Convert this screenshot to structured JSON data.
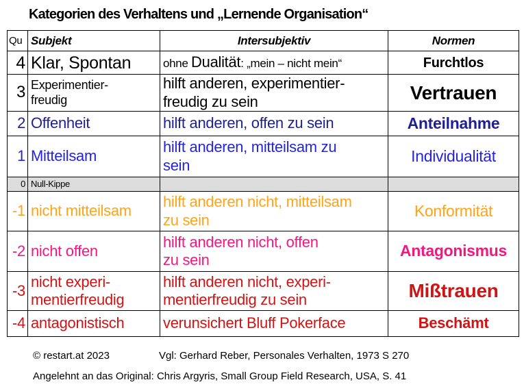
{
  "title": "Kategorien des Verhaltens und „Lernende Organisation“",
  "table": {
    "headers": {
      "qu": "Qu",
      "subjekt": "Subjekt",
      "intersubjektiv": "Intersubjektiv",
      "normen": "Normen"
    },
    "rows": [
      {
        "qu": "4",
        "subjekt": "Klar, Spontan",
        "inter": [
          {
            "text": "ohne ",
            "size": "sm"
          },
          {
            "text": "Dualität",
            "size": "lg"
          },
          {
            "text": ": „mein – nicht mein“",
            "size": "sm"
          }
        ],
        "normen": "Furchtlos",
        "color": "#000000"
      },
      {
        "qu": "3",
        "subjekt": "Experimentier-\nfreudig",
        "inter": "hilft anderen, experimentier-\nfreudig zu sein",
        "normen": "Vertrauen",
        "color": "#000000"
      },
      {
        "qu": "2",
        "subjekt": "Offenheit",
        "inter": "hilft anderen, offen zu sein",
        "normen": "Anteilnahme",
        "color": "#1f1f8f"
      },
      {
        "qu": "1",
        "subjekt": "Mitteilsam",
        "inter": "hilft anderen, mitteilsam zu\nsein",
        "normen": "Individualität",
        "color": "#2424dc"
      },
      {
        "qu": "0",
        "subjekt": "Null-Kippe",
        "inter": "",
        "normen": "",
        "color": "#000000",
        "bg": "#dcdcdc"
      },
      {
        "qu": "-1",
        "subjekt": "nicht mitteilsam",
        "inter": "hilft anderen nicht, mitteilsam\nzu sein",
        "normen": "Konformität",
        "color": "#ffa319"
      },
      {
        "qu": "-2",
        "subjekt": "nicht offen",
        "inter": "hilft anderen nicht, offen\nzu sein",
        "normen": "Antagonismus",
        "color": "#f2187f"
      },
      {
        "qu": "-3",
        "subjekt": "nicht experi-\nmentierfreudig",
        "inter": "hilft anderen nicht, experi-\nmentierfreudig zu sein",
        "normen": "Mißtrauen",
        "color": "#ce1414"
      },
      {
        "qu": "-4",
        "subjekt": "antagonistisch",
        "inter": "verunsichert Bluff Pokerface",
        "normen": "Beschämt",
        "color": "#ce1414"
      }
    ]
  },
  "footer": {
    "copyright": "© restart.at 2023",
    "reference": "Vgl: Gerhard Reber, Personales Verhalten, 1973 S 270",
    "original": "Angelehnt an das Original: Chris Argyris, Small Group Field Research, USA, S. 41"
  }
}
